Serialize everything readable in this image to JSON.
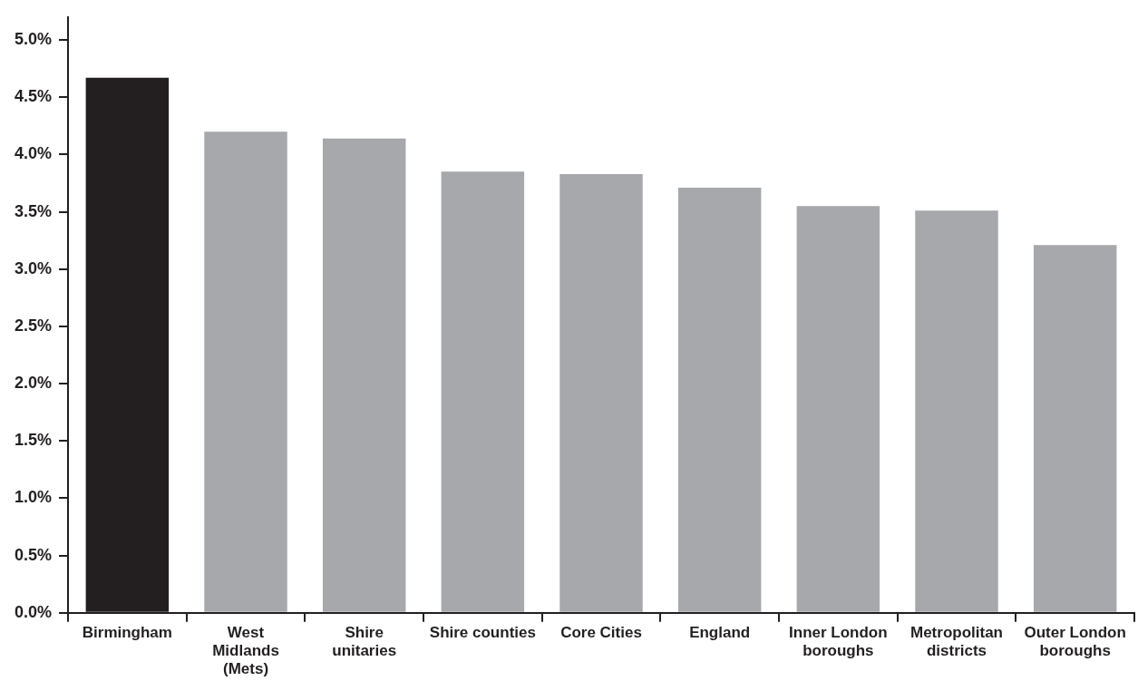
{
  "chart_data": {
    "type": "bar",
    "categories": [
      "Birmingham",
      "West Midlands (Mets)",
      "Shire unitaries",
      "Shire counties",
      "Core Cities",
      "England",
      "Inner London boroughs",
      "Metropolitan districts",
      "Outer London boroughs"
    ],
    "values": [
      4.67,
      4.2,
      4.14,
      3.85,
      3.83,
      3.71,
      3.55,
      3.51,
      3.21
    ],
    "colors": [
      "#231f20",
      "#a7a8ab",
      "#a7a8ab",
      "#a7a8ab",
      "#a7a8ab",
      "#a7a8ab",
      "#a7a8ab",
      "#a7a8ab",
      "#a7a8ab"
    ],
    "ylim": [
      0,
      5.2
    ],
    "yticks": [
      {
        "value": 0,
        "label": "0.0%"
      },
      {
        "value": 0.5,
        "label": "0.5%"
      },
      {
        "value": 1,
        "label": "1.0%"
      },
      {
        "value": 1.5,
        "label": "1.5%"
      },
      {
        "value": 2,
        "label": "2.0%"
      },
      {
        "value": 2.5,
        "label": "2.5%"
      },
      {
        "value": 3,
        "label": "3.0%"
      },
      {
        "value": 3.5,
        "label": "3.5%"
      },
      {
        "value": 4,
        "label": "4.0%"
      },
      {
        "value": 4.5,
        "label": "4.5%"
      },
      {
        "value": 5,
        "label": "5.0%"
      }
    ],
    "grid": false,
    "legend": false
  }
}
